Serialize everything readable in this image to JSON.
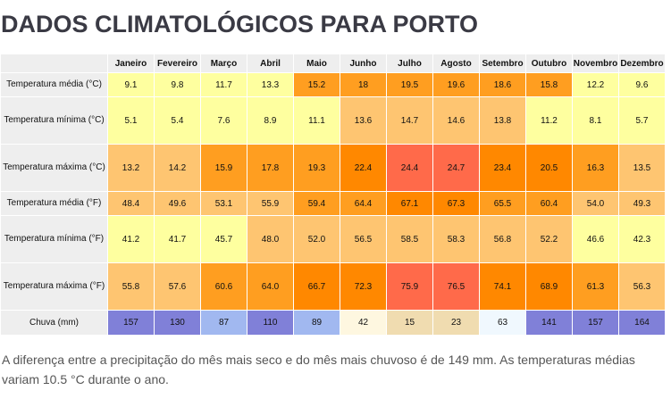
{
  "title": "DADOS CLIMATOLÓGICOS PARA PORTO",
  "months": [
    "Janeiro",
    "Fevereiro",
    "Março",
    "Abril",
    "Maio",
    "Junho",
    "Julho",
    "Agosto",
    "Setembro",
    "Outubro",
    "Novembro",
    "Dezembro"
  ],
  "rows": [
    {
      "label": "Temperatura média (°C)",
      "values": [
        "9.1",
        "9.8",
        "11.7",
        "13.3",
        "15.2",
        "18",
        "19.5",
        "19.6",
        "18.6",
        "15.8",
        "12.2",
        "9.6"
      ],
      "colors": [
        "#feff9f",
        "#feff9f",
        "#feff9f",
        "#feff9f",
        "#ff9e20",
        "#ff9e20",
        "#ff9e20",
        "#ff9e20",
        "#ff9e20",
        "#ff9e20",
        "#feff9f",
        "#feff9f"
      ]
    },
    {
      "label": "Temperatura mínima (°C)",
      "values": [
        "5.1",
        "5.4",
        "7.6",
        "8.9",
        "11.1",
        "13.6",
        "14.7",
        "14.6",
        "13.8",
        "11.2",
        "8.1",
        "5.7"
      ],
      "colors": [
        "#feff9f",
        "#feff9f",
        "#feff9f",
        "#feff9f",
        "#feff9f",
        "#fec571",
        "#fec571",
        "#fec571",
        "#fec571",
        "#feff9f",
        "#feff9f",
        "#feff9f"
      ]
    },
    {
      "label": "Temperatura máxima (°C)",
      "values": [
        "13.2",
        "14.2",
        "15.9",
        "17.8",
        "19.3",
        "22.4",
        "24.4",
        "24.7",
        "23.4",
        "20.5",
        "16.3",
        "13.5"
      ],
      "colors": [
        "#fec571",
        "#fec571",
        "#ff9e20",
        "#ff9e20",
        "#ff9e20",
        "#ff8800",
        "#ff6a4a",
        "#ff6a4a",
        "#ff8800",
        "#ff8800",
        "#ff9e20",
        "#fec571"
      ]
    },
    {
      "label": "Temperatura média (°F)",
      "values": [
        "48.4",
        "49.6",
        "53.1",
        "55.9",
        "59.4",
        "64.4",
        "67.1",
        "67.3",
        "65.5",
        "60.4",
        "54.0",
        "49.3"
      ],
      "colors": [
        "#fec571",
        "#fec571",
        "#fec571",
        "#fec571",
        "#ff9e20",
        "#ff9e20",
        "#ff8800",
        "#ff8800",
        "#ff9e20",
        "#ff9e20",
        "#fec571",
        "#fec571"
      ]
    },
    {
      "label": "Temperatura mínima (°F)",
      "values": [
        "41.2",
        "41.7",
        "45.7",
        "48.0",
        "52.0",
        "56.5",
        "58.5",
        "58.3",
        "56.8",
        "52.2",
        "46.6",
        "42.3"
      ],
      "colors": [
        "#feff9f",
        "#feff9f",
        "#feff9f",
        "#fec571",
        "#fec571",
        "#fec571",
        "#fec571",
        "#fec571",
        "#fec571",
        "#fec571",
        "#feff9f",
        "#feff9f"
      ]
    },
    {
      "label": "Temperatura máxima (°F)",
      "values": [
        "55.8",
        "57.6",
        "60.6",
        "64.0",
        "66.7",
        "72.3",
        "75.9",
        "76.5",
        "74.1",
        "68.9",
        "61.3",
        "56.3"
      ],
      "colors": [
        "#fec571",
        "#fec571",
        "#ff9e20",
        "#ff9e20",
        "#ff8800",
        "#ff8800",
        "#ff6a4a",
        "#ff6a4a",
        "#ff8800",
        "#ff8800",
        "#ff9e20",
        "#fec571"
      ]
    },
    {
      "label": "Chuva (mm)",
      "values": [
        "157",
        "130",
        "87",
        "110",
        "89",
        "42",
        "15",
        "23",
        "63",
        "141",
        "157",
        "164"
      ],
      "colors": [
        "#8080d8",
        "#8080d8",
        "#a1b8f0",
        "#8080d8",
        "#a1b8f0",
        "#fef7e0",
        "#f0dcb0",
        "#f0dcb0",
        "#f0f8fe",
        "#8080d8",
        "#8080d8",
        "#8080d8"
      ]
    }
  ],
  "summary": "A diferença entre a precipitação do mês mais seco e do mês mais chuvoso é de 149 mm. As temperaturas médias variam 10.5 °C durante o ano."
}
